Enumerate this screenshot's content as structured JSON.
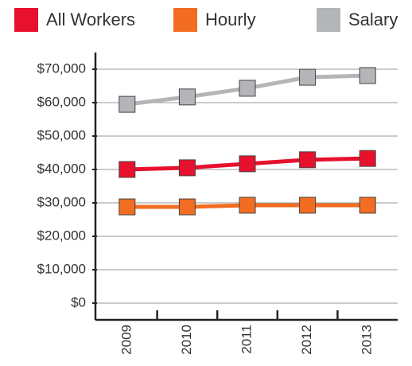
{
  "chart_data": {
    "type": "line",
    "categories": [
      "2009",
      "2010",
      "2011",
      "2012",
      "2013"
    ],
    "series": [
      {
        "name": "All Workers",
        "color": "#e8112d",
        "values": [
          40000,
          40500,
          41700,
          42900,
          43300
        ]
      },
      {
        "name": "Hourly",
        "color": "#f26d21",
        "values": [
          28800,
          28800,
          29300,
          29300,
          29300
        ]
      },
      {
        "name": "Salary",
        "color": "#b3b5b8",
        "values": [
          59500,
          61700,
          64300,
          67600,
          68100
        ]
      }
    ],
    "ylim": [
      -5000,
      75000
    ],
    "yticks": [
      {
        "value": 0,
        "label": "$0"
      },
      {
        "value": 10000,
        "label": "$10,000"
      },
      {
        "value": 20000,
        "label": "$20,000"
      },
      {
        "value": 30000,
        "label": "$30,000"
      },
      {
        "value": 40000,
        "label": "$40,000"
      },
      {
        "value": 50000,
        "label": "$50,000"
      },
      {
        "value": 60000,
        "label": "$60,000"
      },
      {
        "value": 70000,
        "label": "$70,000"
      }
    ],
    "grid": true
  }
}
